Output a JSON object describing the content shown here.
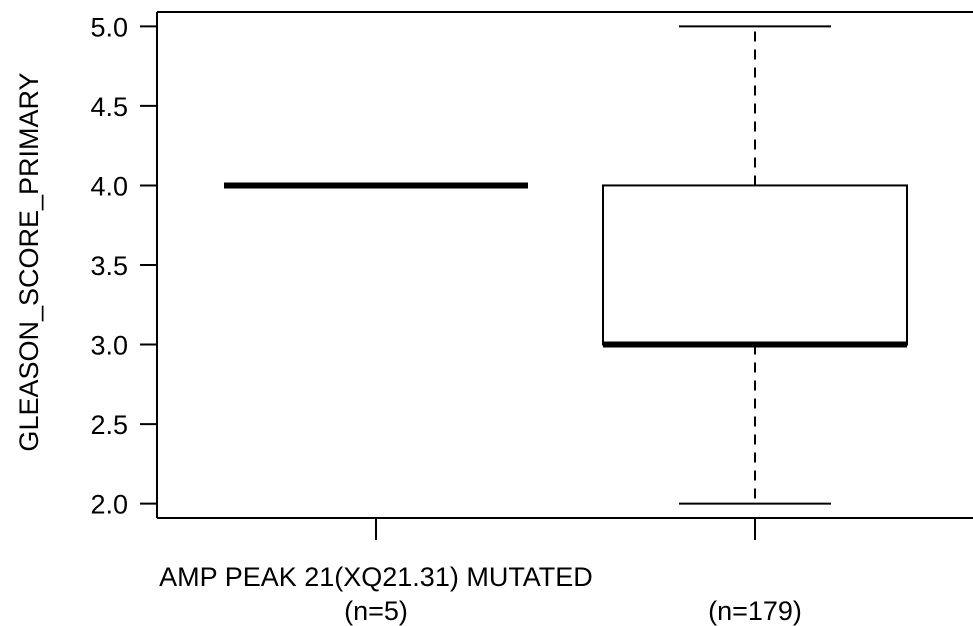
{
  "chart_data": {
    "type": "box",
    "ylabel": "GLEASON_SCORE_PRIMARY",
    "ylim": [
      1.91,
      5.09
    ],
    "yticks": [
      "2.0",
      "2.5",
      "3.0",
      "3.5",
      "4.0",
      "4.5",
      "5.0"
    ],
    "grid": false,
    "x_title": "AMP PEAK 21(XQ21.31) MUTATED",
    "groups": [
      {
        "label": "(n=5)",
        "min": 4.0,
        "q1": 4.0,
        "median": 4.0,
        "q3": 4.0,
        "max": 4.0
      },
      {
        "label": "(n=179)",
        "min": 2.0,
        "q1": 3.0,
        "median": 3.0,
        "q3": 4.0,
        "max": 5.0
      }
    ]
  }
}
